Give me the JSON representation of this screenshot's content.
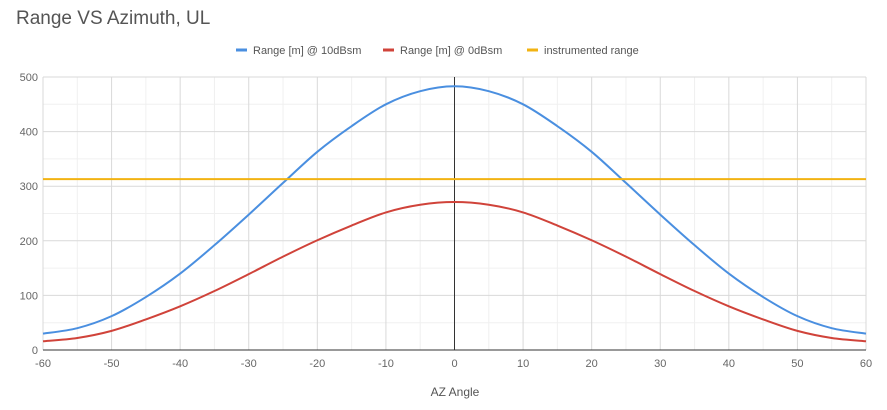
{
  "chart_data": {
    "type": "line",
    "title": "Range VS Azimuth, UL",
    "xlabel": "AZ Angle",
    "ylabel": "",
    "xlim": [
      -60,
      60
    ],
    "ylim": [
      0,
      500
    ],
    "x_ticks": [
      -60,
      -50,
      -40,
      -30,
      -20,
      -10,
      0,
      10,
      20,
      30,
      40,
      50,
      60
    ],
    "y_ticks": [
      0,
      100,
      200,
      300,
      400,
      500
    ],
    "grid": true,
    "legend_position": "top",
    "x": [
      -60,
      -55,
      -50,
      -45,
      -40,
      -35,
      -30,
      -25,
      -20,
      -15,
      -10,
      -5,
      0,
      5,
      10,
      15,
      20,
      25,
      30,
      35,
      40,
      45,
      50,
      55,
      60
    ],
    "series": [
      {
        "name": "Range [m] @ 10dBsm",
        "color": "#4a8fe0",
        "values": [
          30,
          40,
          62,
          97,
          140,
          192,
          248,
          306,
          363,
          410,
          450,
          474,
          483,
          474,
          450,
          410,
          363,
          306,
          248,
          192,
          140,
          97,
          62,
          40,
          30
        ]
      },
      {
        "name": "Range [m] @ 0dBsm",
        "color": "#d0433a",
        "values": [
          16,
          22,
          35,
          56,
          80,
          108,
          139,
          171,
          201,
          228,
          252,
          266,
          271,
          266,
          252,
          228,
          201,
          171,
          139,
          108,
          80,
          56,
          35,
          22,
          16
        ]
      },
      {
        "name": "instrumented range",
        "color": "#f2b312",
        "values": [
          313,
          313,
          313,
          313,
          313,
          313,
          313,
          313,
          313,
          313,
          313,
          313,
          313,
          313,
          313,
          313,
          313,
          313,
          313,
          313,
          313,
          313,
          313,
          313,
          313
        ]
      }
    ]
  }
}
